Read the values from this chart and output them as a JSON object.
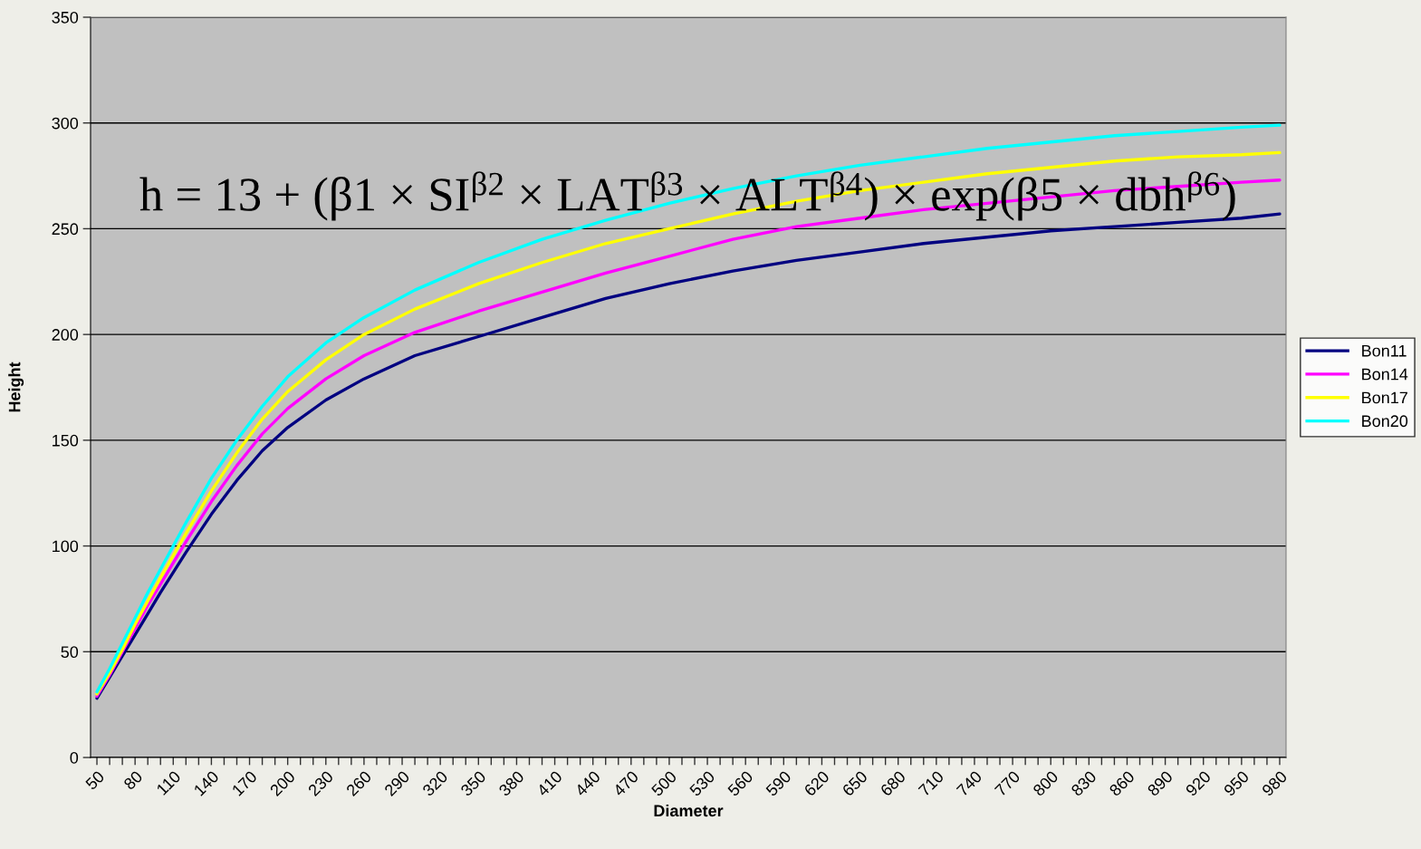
{
  "chart_data": {
    "type": "line",
    "xlabel": "Diameter",
    "ylabel": "Height",
    "annotations": [
      "h = 13 + (β1 × SI$^{β2}$ × LAT$^{β3}$ × ALT$^{β4}$) × exp(β5 × dbh$^{β6}$)"
    ],
    "xlim": [
      45,
      985
    ],
    "ylim": [
      0,
      350
    ],
    "yticks": [
      0,
      50,
      100,
      150,
      200,
      250,
      300,
      350
    ],
    "xticks": [
      50,
      {
        "value": 60,
        "label": null
      },
      {
        "value": 70,
        "label": null
      },
      80,
      {
        "value": 90,
        "label": null
      },
      {
        "value": 100,
        "label": null
      },
      110,
      {
        "value": 120,
        "label": null
      },
      {
        "value": 130,
        "label": null
      },
      140,
      {
        "value": 150,
        "label": null
      },
      {
        "value": 160,
        "label": null
      },
      170,
      {
        "value": 180,
        "label": null
      },
      {
        "value": 190,
        "label": null
      },
      200,
      {
        "value": 210,
        "label": null
      },
      {
        "value": 220,
        "label": null
      },
      230,
      {
        "value": 240,
        "label": null
      },
      {
        "value": 250,
        "label": null
      },
      260,
      {
        "value": 270,
        "label": null
      },
      {
        "value": 280,
        "label": null
      },
      290,
      {
        "value": 300,
        "label": null
      },
      {
        "value": 310,
        "label": null
      },
      320,
      {
        "value": 330,
        "label": null
      },
      {
        "value": 340,
        "label": null
      },
      350,
      {
        "value": 360,
        "label": null
      },
      {
        "value": 370,
        "label": null
      },
      380,
      {
        "value": 390,
        "label": null
      },
      {
        "value": 400,
        "label": null
      },
      410,
      {
        "value": 420,
        "label": null
      },
      {
        "value": 430,
        "label": null
      },
      440,
      {
        "value": 450,
        "label": null
      },
      {
        "value": 460,
        "label": null
      },
      470,
      {
        "value": 480,
        "label": null
      },
      {
        "value": 490,
        "label": null
      },
      500,
      {
        "value": 510,
        "label": null
      },
      {
        "value": 520,
        "label": null
      },
      530,
      {
        "value": 540,
        "label": null
      },
      {
        "value": 550,
        "label": null
      },
      560,
      {
        "value": 570,
        "label": null
      },
      {
        "value": 580,
        "label": null
      },
      590,
      {
        "value": 600,
        "label": null
      },
      {
        "value": 610,
        "label": null
      },
      620,
      {
        "value": 630,
        "label": null
      },
      {
        "value": 640,
        "label": null
      },
      650,
      {
        "value": 660,
        "label": null
      },
      {
        "value": 670,
        "label": null
      },
      680,
      {
        "value": 690,
        "label": null
      },
      {
        "value": 700,
        "label": null
      },
      710,
      {
        "value": 720,
        "label": null
      },
      {
        "value": 730,
        "label": null
      },
      740,
      {
        "value": 750,
        "label": null
      },
      {
        "value": 760,
        "label": null
      },
      770,
      {
        "value": 780,
        "label": null
      },
      {
        "value": 790,
        "label": null
      },
      800,
      {
        "value": 810,
        "label": null
      },
      {
        "value": 820,
        "label": null
      },
      830,
      {
        "value": 840,
        "label": null
      },
      {
        "value": 850,
        "label": null
      },
      860,
      {
        "value": 870,
        "label": null
      },
      {
        "value": 880,
        "label": null
      },
      890,
      {
        "value": 900,
        "label": null
      },
      {
        "value": 910,
        "label": null
      },
      920,
      {
        "value": 930,
        "label": null
      },
      {
        "value": 940,
        "label": null
      },
      950,
      {
        "value": 960,
        "label": null
      },
      {
        "value": 970,
        "label": null
      },
      980
    ],
    "x": [
      50,
      60,
      70,
      80,
      90,
      100,
      120,
      140,
      160,
      180,
      200,
      230,
      260,
      300,
      350,
      400,
      450,
      500,
      550,
      600,
      650,
      700,
      750,
      800,
      850,
      900,
      950,
      980
    ],
    "grid": "y",
    "legend": "right",
    "marker": "none",
    "line_style": "solid",
    "series": [
      {
        "name": "Bon11",
        "color": "#000080",
        "values": [
          28,
          38,
          48,
          58,
          68,
          78,
          97,
          115,
          131,
          145,
          156,
          169,
          179,
          190,
          199,
          208,
          217,
          224,
          230,
          235,
          239,
          243,
          246,
          249,
          251,
          253,
          255,
          257
        ]
      },
      {
        "name": "Bon14",
        "color": "#ff00ff",
        "values": [
          29,
          39,
          50,
          61,
          72,
          82,
          102,
          121,
          138,
          153,
          165,
          179,
          190,
          201,
          211,
          220,
          229,
          237,
          245,
          251,
          255,
          259,
          262,
          265,
          268,
          270,
          272,
          273
        ]
      },
      {
        "name": "Bon17",
        "color": "#ffff00",
        "values": [
          30,
          40,
          51,
          63,
          74,
          85,
          106,
          126,
          144,
          160,
          173,
          188,
          200,
          212,
          224,
          234,
          243,
          250,
          257,
          263,
          268,
          272,
          276,
          279,
          282,
          284,
          285,
          286
        ]
      },
      {
        "name": "Bon20",
        "color": "#00ffff",
        "values": [
          31,
          42,
          54,
          66,
          78,
          89,
          111,
          132,
          150,
          166,
          180,
          196,
          208,
          221,
          234,
          245,
          254,
          262,
          269,
          275,
          280,
          284,
          288,
          291,
          294,
          296,
          298,
          299
        ]
      }
    ]
  }
}
